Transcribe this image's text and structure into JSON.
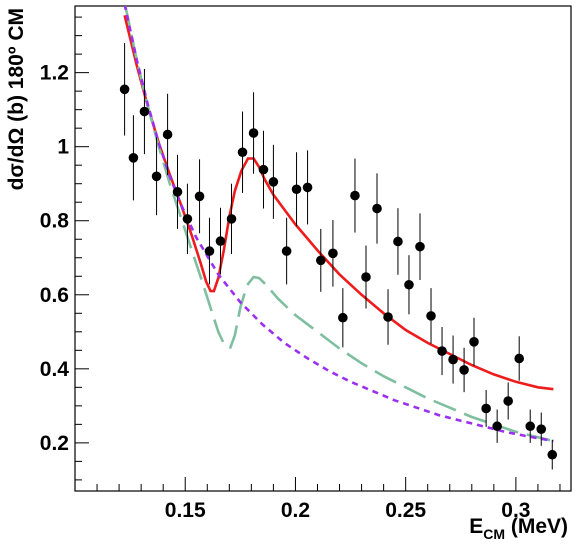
{
  "chart_data": {
    "type": "scatter",
    "xlabel": "E",
    "xlabel_sub": "CM",
    "xlabel_unit": " (MeV)",
    "ylabel": "dσ/dΩ (b) 180º CM",
    "xlim": [
      0.1,
      0.325
    ],
    "ylim": [
      0.07,
      1.38
    ],
    "grid": false,
    "legend": "none",
    "x_ticks": [
      {
        "v": 0.15,
        "label": "0.15"
      },
      {
        "v": 0.2,
        "label": "0.2"
      },
      {
        "v": 0.25,
        "label": "0.25"
      },
      {
        "v": 0.3,
        "label": "0.3"
      }
    ],
    "y_ticks": [
      {
        "v": 0.2,
        "label": "0.2"
      },
      {
        "v": 0.4,
        "label": "0.4"
      },
      {
        "v": 0.6,
        "label": "0.6"
      },
      {
        "v": 0.8,
        "label": "0.8"
      },
      {
        "v": 1.0,
        "label": "1"
      },
      {
        "v": 1.2,
        "label": "1.2"
      }
    ],
    "points": [
      {
        "x": 0.1225,
        "y": 1.155,
        "err": 0.125
      },
      {
        "x": 0.1265,
        "y": 0.97,
        "err": 0.115
      },
      {
        "x": 0.1315,
        "y": 1.095,
        "err": 0.115
      },
      {
        "x": 0.137,
        "y": 0.92,
        "err": 0.105
      },
      {
        "x": 0.142,
        "y": 1.033,
        "err": 0.11
      },
      {
        "x": 0.1465,
        "y": 0.878,
        "err": 0.1
      },
      {
        "x": 0.151,
        "y": 0.805,
        "err": 0.095
      },
      {
        "x": 0.1565,
        "y": 0.866,
        "err": 0.1
      },
      {
        "x": 0.161,
        "y": 0.718,
        "err": 0.09
      },
      {
        "x": 0.166,
        "y": 0.745,
        "err": 0.09
      },
      {
        "x": 0.171,
        "y": 0.805,
        "err": 0.095
      },
      {
        "x": 0.176,
        "y": 0.985,
        "err": 0.11
      },
      {
        "x": 0.181,
        "y": 1.037,
        "err": 0.11
      },
      {
        "x": 0.1855,
        "y": 0.938,
        "err": 0.105
      },
      {
        "x": 0.19,
        "y": 0.905,
        "err": 0.1
      },
      {
        "x": 0.196,
        "y": 0.718,
        "err": 0.09
      },
      {
        "x": 0.2005,
        "y": 0.885,
        "err": 0.1
      },
      {
        "x": 0.2055,
        "y": 0.89,
        "err": 0.1
      },
      {
        "x": 0.2115,
        "y": 0.693,
        "err": 0.085
      },
      {
        "x": 0.217,
        "y": 0.712,
        "err": 0.09
      },
      {
        "x": 0.2215,
        "y": 0.538,
        "err": 0.08
      },
      {
        "x": 0.227,
        "y": 0.868,
        "err": 0.1
      },
      {
        "x": 0.232,
        "y": 0.648,
        "err": 0.085
      },
      {
        "x": 0.237,
        "y": 0.833,
        "err": 0.095
      },
      {
        "x": 0.242,
        "y": 0.54,
        "err": 0.075
      },
      {
        "x": 0.2465,
        "y": 0.744,
        "err": 0.09
      },
      {
        "x": 0.2515,
        "y": 0.627,
        "err": 0.08
      },
      {
        "x": 0.2565,
        "y": 0.73,
        "err": 0.09
      },
      {
        "x": 0.2615,
        "y": 0.543,
        "err": 0.075
      },
      {
        "x": 0.2665,
        "y": 0.448,
        "err": 0.065
      },
      {
        "x": 0.2715,
        "y": 0.425,
        "err": 0.065
      },
      {
        "x": 0.2765,
        "y": 0.397,
        "err": 0.06
      },
      {
        "x": 0.281,
        "y": 0.473,
        "err": 0.065
      },
      {
        "x": 0.2865,
        "y": 0.293,
        "err": 0.05
      },
      {
        "x": 0.2915,
        "y": 0.245,
        "err": 0.045
      },
      {
        "x": 0.2965,
        "y": 0.313,
        "err": 0.05
      },
      {
        "x": 0.3015,
        "y": 0.428,
        "err": 0.06
      },
      {
        "x": 0.3065,
        "y": 0.245,
        "err": 0.045
      },
      {
        "x": 0.3115,
        "y": 0.237,
        "err": 0.045
      },
      {
        "x": 0.3165,
        "y": 0.168,
        "err": 0.04
      }
    ],
    "curves": [
      {
        "color": "#ee1c1c",
        "dash": "solid",
        "x": [
          0.1225,
          0.128,
          0.133,
          0.138,
          0.143,
          0.148,
          0.153,
          0.157,
          0.1595,
          0.1615,
          0.163,
          0.165,
          0.1675,
          0.17,
          0.1725,
          0.1755,
          0.1785,
          0.181,
          0.1835,
          0.186,
          0.19,
          0.195,
          0.2,
          0.205,
          0.21,
          0.22,
          0.23,
          0.24,
          0.25,
          0.26,
          0.27,
          0.28,
          0.29,
          0.3,
          0.31,
          0.317
        ],
        "y": [
          1.355,
          1.22,
          1.11,
          1.01,
          0.925,
          0.845,
          0.76,
          0.685,
          0.635,
          0.61,
          0.61,
          0.645,
          0.72,
          0.81,
          0.88,
          0.935,
          0.968,
          0.968,
          0.945,
          0.912,
          0.87,
          0.83,
          0.79,
          0.755,
          0.72,
          0.655,
          0.6,
          0.55,
          0.505,
          0.47,
          0.44,
          0.41,
          0.385,
          0.365,
          0.35,
          0.345
        ]
      },
      {
        "color": "#7fbfa0",
        "dash": "long",
        "x": [
          0.1225,
          0.128,
          0.133,
          0.138,
          0.143,
          0.148,
          0.153,
          0.158,
          0.162,
          0.165,
          0.168,
          0.1705,
          0.1725,
          0.175,
          0.178,
          0.181,
          0.1835,
          0.187,
          0.192,
          0.2,
          0.21,
          0.22,
          0.23,
          0.24,
          0.25,
          0.26,
          0.27,
          0.28,
          0.29,
          0.3,
          0.31,
          0.317
        ],
        "y": [
          1.39,
          1.235,
          1.11,
          1.0,
          0.9,
          0.81,
          0.72,
          0.63,
          0.555,
          0.5,
          0.462,
          0.458,
          0.49,
          0.565,
          0.625,
          0.648,
          0.645,
          0.625,
          0.59,
          0.545,
          0.5,
          0.455,
          0.415,
          0.38,
          0.35,
          0.32,
          0.295,
          0.27,
          0.25,
          0.23,
          0.215,
          0.205
        ]
      },
      {
        "color": "#9b30f0",
        "dash": "short",
        "x": [
          0.1225,
          0.128,
          0.133,
          0.138,
          0.143,
          0.148,
          0.155,
          0.165,
          0.175,
          0.185,
          0.195,
          0.205,
          0.215,
          0.225,
          0.235,
          0.245,
          0.255,
          0.265,
          0.275,
          0.285,
          0.295,
          0.305,
          0.317
        ],
        "y": [
          1.385,
          1.235,
          1.115,
          1.01,
          0.92,
          0.845,
          0.755,
          0.655,
          0.58,
          0.52,
          0.47,
          0.43,
          0.395,
          0.365,
          0.34,
          0.315,
          0.295,
          0.275,
          0.26,
          0.245,
          0.23,
          0.218,
          0.205
        ]
      }
    ]
  }
}
